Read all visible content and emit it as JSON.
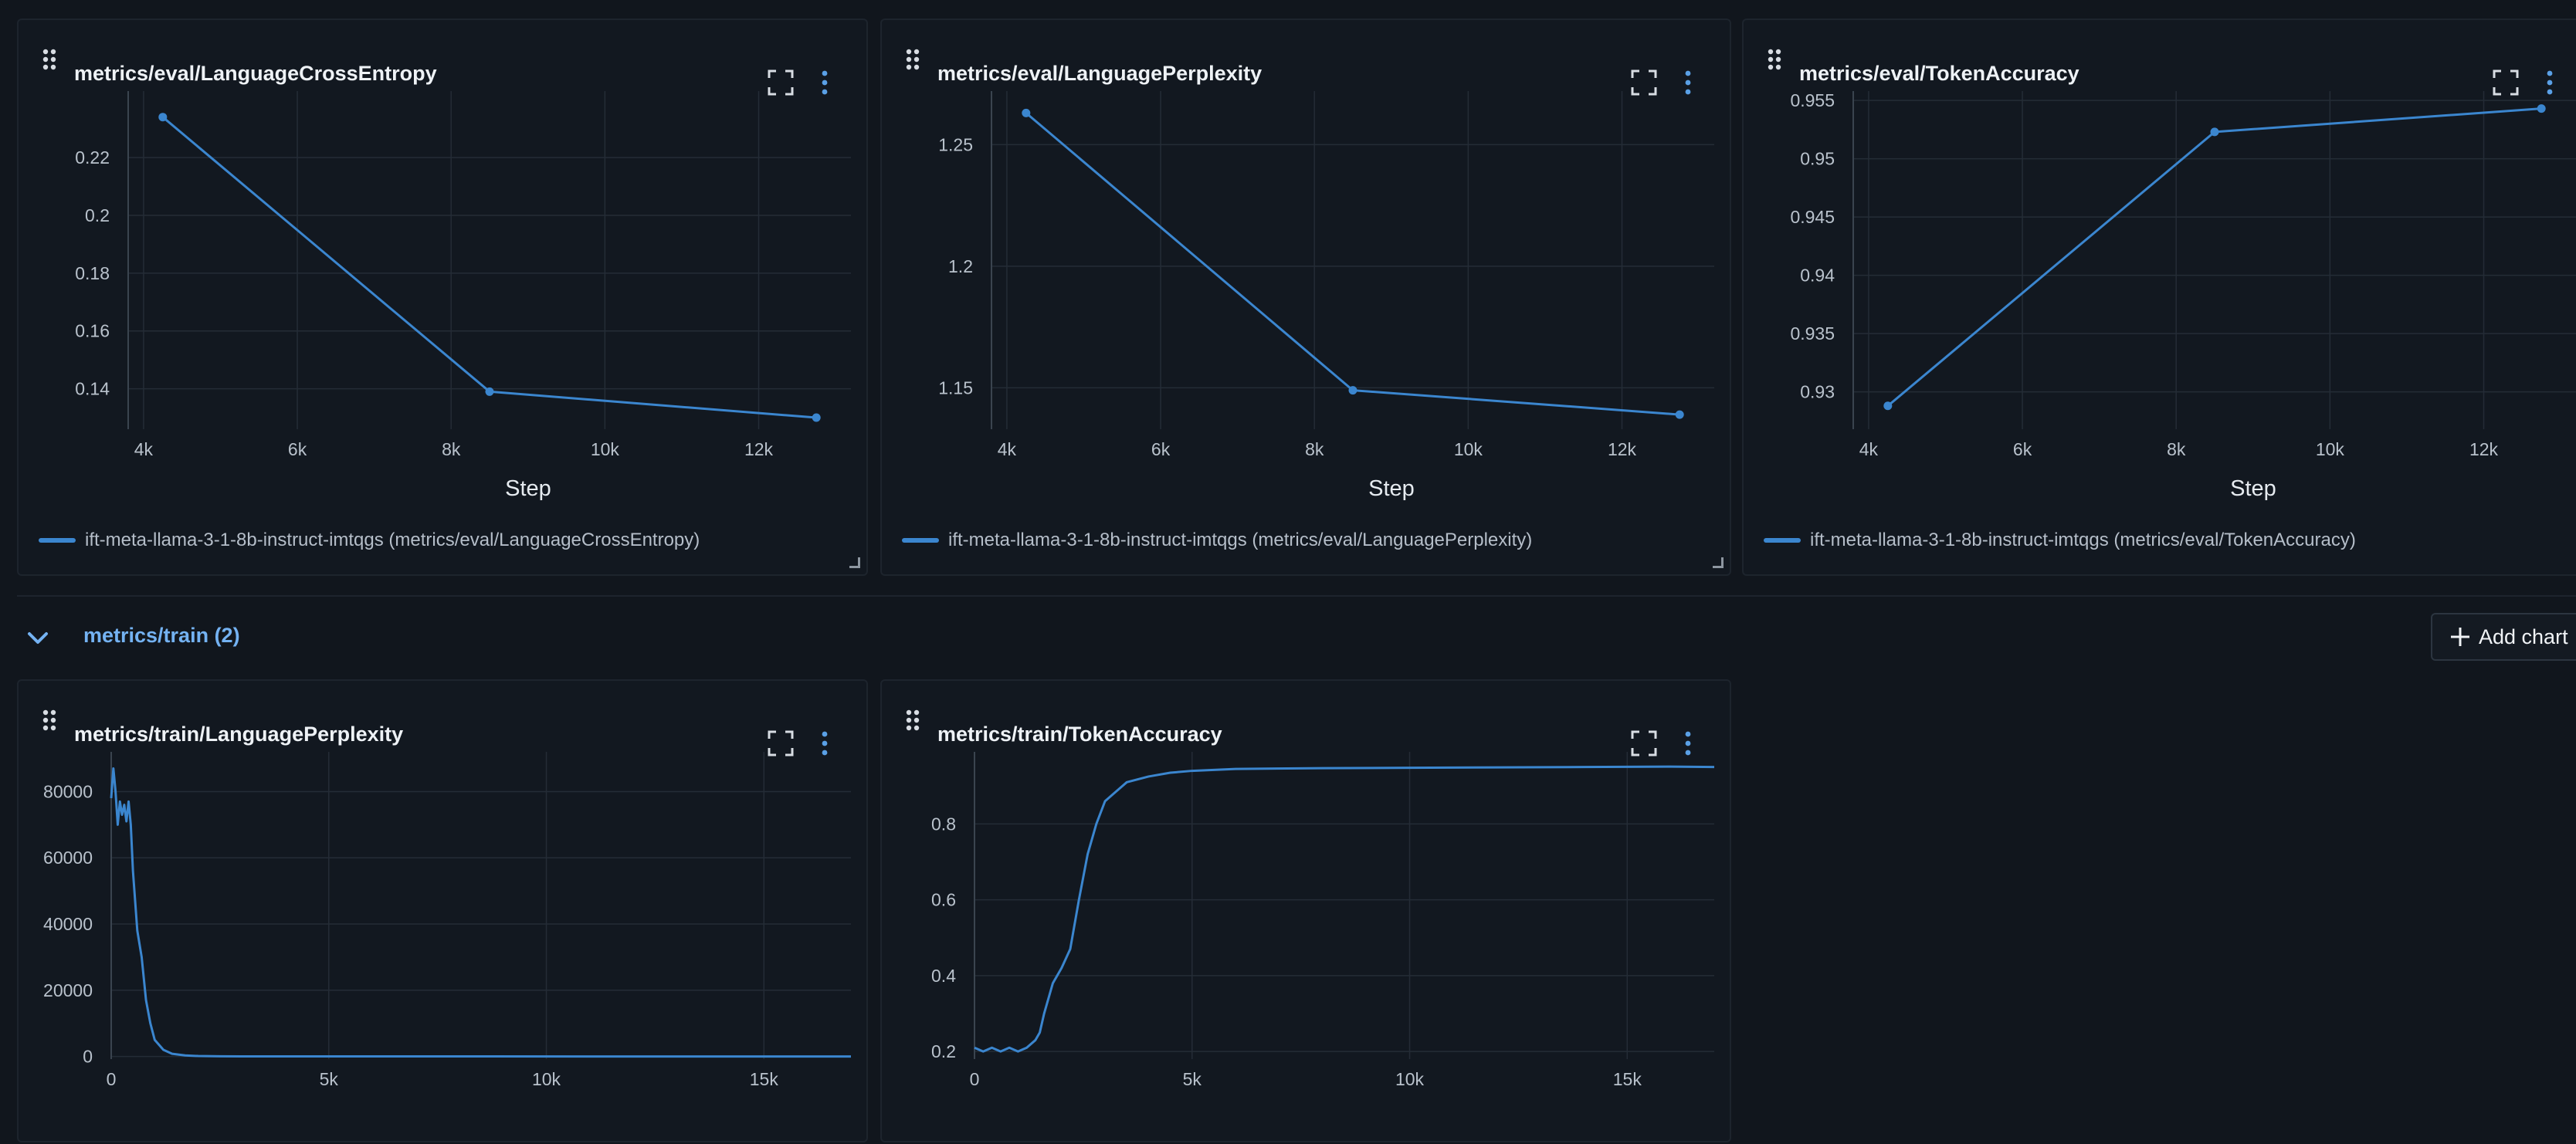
{
  "colors": {
    "accent": "#3b86cf",
    "background": "#11161d",
    "panel": "#121820",
    "section_link": "#74b2f2"
  },
  "icons": {
    "drag": "drag-handle-icon",
    "fullscreen": "fullscreen-icon",
    "more": "kebab-menu-icon",
    "toggle": "chevron-down-icon",
    "add": "plus-icon"
  },
  "eval_panels": [
    {
      "title": "metrics/eval/LanguageCrossEntropy",
      "legend": "ift-meta-llama-3-1-8b-instruct-imtqgs (metrics/eval/LanguageCrossEntropy)"
    },
    {
      "title": "metrics/eval/LanguagePerplexity",
      "legend": "ift-meta-llama-3-1-8b-instruct-imtqgs (metrics/eval/LanguagePerplexity)"
    },
    {
      "title": "metrics/eval/TokenAccuracy",
      "legend": "ift-meta-llama-3-1-8b-instruct-imtqgs (metrics/eval/TokenAccuracy)"
    }
  ],
  "train_section": {
    "title": "metrics/train (2)",
    "add_chart_label": "Add chart"
  },
  "train_panels": [
    {
      "title": "metrics/train/LanguagePerplexity"
    },
    {
      "title": "metrics/train/TokenAccuracy"
    }
  ],
  "chart_data": [
    {
      "type": "line",
      "title": "metrics/eval/LanguageCrossEntropy",
      "xlabel": "Step",
      "ylabel": "",
      "x": [
        4250,
        8500,
        12750
      ],
      "series": [
        {
          "name": "ift-meta-llama-3-1-8b-instruct-imtqgs (metrics/eval/LanguageCrossEntropy)",
          "values": [
            0.234,
            0.139,
            0.13
          ]
        }
      ],
      "xlim": [
        3800,
        13200
      ],
      "ylim": [
        0.126,
        0.243
      ],
      "xticks": [
        4000,
        6000,
        8000,
        10000,
        12000
      ],
      "xtick_labels": [
        "4k",
        "6k",
        "8k",
        "10k",
        "12k"
      ],
      "yticks": [
        0.14,
        0.16,
        0.18,
        0.2,
        0.22
      ],
      "ytick_labels": [
        "0.14",
        "0.16",
        "0.18",
        "0.2",
        "0.22"
      ],
      "markers": true,
      "grid": true
    },
    {
      "type": "line",
      "title": "metrics/eval/LanguagePerplexity",
      "xlabel": "Step",
      "ylabel": "",
      "x": [
        4250,
        8500,
        12750
      ],
      "series": [
        {
          "name": "ift-meta-llama-3-1-8b-instruct-imtqgs (metrics/eval/LanguagePerplexity)",
          "values": [
            1.263,
            1.149,
            1.139
          ]
        }
      ],
      "xlim": [
        3800,
        13200
      ],
      "ylim": [
        1.133,
        1.272
      ],
      "xticks": [
        4000,
        6000,
        8000,
        10000,
        12000
      ],
      "xtick_labels": [
        "4k",
        "6k",
        "8k",
        "10k",
        "12k"
      ],
      "yticks": [
        1.15,
        1.2,
        1.25
      ],
      "ytick_labels": [
        "1.15",
        "1.2",
        "1.25"
      ],
      "markers": true,
      "grid": true
    },
    {
      "type": "line",
      "title": "metrics/eval/TokenAccuracy",
      "xlabel": "Step",
      "ylabel": "",
      "x": [
        4250,
        8500,
        12750
      ],
      "series": [
        {
          "name": "ift-meta-llama-3-1-8b-instruct-imtqgs (metrics/eval/TokenAccuracy)",
          "values": [
            0.9288,
            0.9523,
            0.9543
          ]
        }
      ],
      "xlim": [
        3800,
        13200
      ],
      "ylim": [
        0.9268,
        0.9558
      ],
      "xticks": [
        4000,
        6000,
        8000,
        10000,
        12000
      ],
      "xtick_labels": [
        "4k",
        "6k",
        "8k",
        "10k",
        "12k"
      ],
      "yticks": [
        0.93,
        0.935,
        0.94,
        0.945,
        0.95,
        0.955
      ],
      "ytick_labels": [
        "0.93",
        "0.935",
        "0.94",
        "0.945",
        "0.95",
        "0.955"
      ],
      "markers": true,
      "grid": true
    },
    {
      "type": "line",
      "title": "metrics/train/LanguagePerplexity",
      "xlabel": "",
      "ylabel": "",
      "x": [
        0,
        50,
        100,
        150,
        200,
        250,
        300,
        350,
        400,
        450,
        500,
        600,
        700,
        800,
        900,
        1000,
        1200,
        1400,
        1700,
        2000,
        2500,
        3000,
        5000,
        8000,
        12000,
        17000
      ],
      "series": [
        {
          "name": "",
          "values": [
            78000,
            87000,
            80000,
            70000,
            77000,
            73000,
            76000,
            71000,
            77000,
            70000,
            56000,
            38000,
            30000,
            17000,
            10000,
            5000,
            2000,
            800,
            300,
            120,
            40,
            10,
            5,
            2,
            1,
            1
          ]
        }
      ],
      "xlim": [
        0,
        17000
      ],
      "ylim": [
        -800,
        92000
      ],
      "xticks": [
        0,
        5000,
        10000,
        15000
      ],
      "xtick_labels": [
        "0",
        "5k",
        "10k",
        "15k"
      ],
      "yticks": [
        0,
        20000,
        40000,
        60000,
        80000
      ],
      "ytick_labels": [
        "0",
        "20000",
        "40000",
        "60000",
        "80000"
      ],
      "markers": false,
      "grid": true
    },
    {
      "type": "line",
      "title": "metrics/train/TokenAccuracy",
      "xlabel": "",
      "ylabel": "",
      "x": [
        0,
        200,
        400,
        600,
        800,
        1000,
        1200,
        1400,
        1500,
        1600,
        1800,
        2000,
        2200,
        2400,
        2500,
        2600,
        2800,
        3000,
        3200,
        3500,
        4000,
        4500,
        5000,
        6000,
        8000,
        10000,
        12000,
        14000,
        16000,
        17000
      ],
      "series": [
        {
          "name": "",
          "values": [
            0.21,
            0.2,
            0.21,
            0.2,
            0.21,
            0.2,
            0.21,
            0.23,
            0.25,
            0.3,
            0.38,
            0.42,
            0.47,
            0.6,
            0.66,
            0.72,
            0.8,
            0.86,
            0.88,
            0.91,
            0.925,
            0.935,
            0.94,
            0.945,
            0.947,
            0.948,
            0.949,
            0.95,
            0.951,
            0.95
          ]
        }
      ],
      "xlim": [
        0,
        17000
      ],
      "ylim": [
        0.18,
        0.99
      ],
      "xticks": [
        0,
        5000,
        10000,
        15000
      ],
      "xtick_labels": [
        "0",
        "5k",
        "10k",
        "15k"
      ],
      "yticks": [
        0.2,
        0.4,
        0.6,
        0.8
      ],
      "ytick_labels": [
        "0.2",
        "0.4",
        "0.6",
        "0.8"
      ],
      "markers": false,
      "grid": true
    }
  ]
}
